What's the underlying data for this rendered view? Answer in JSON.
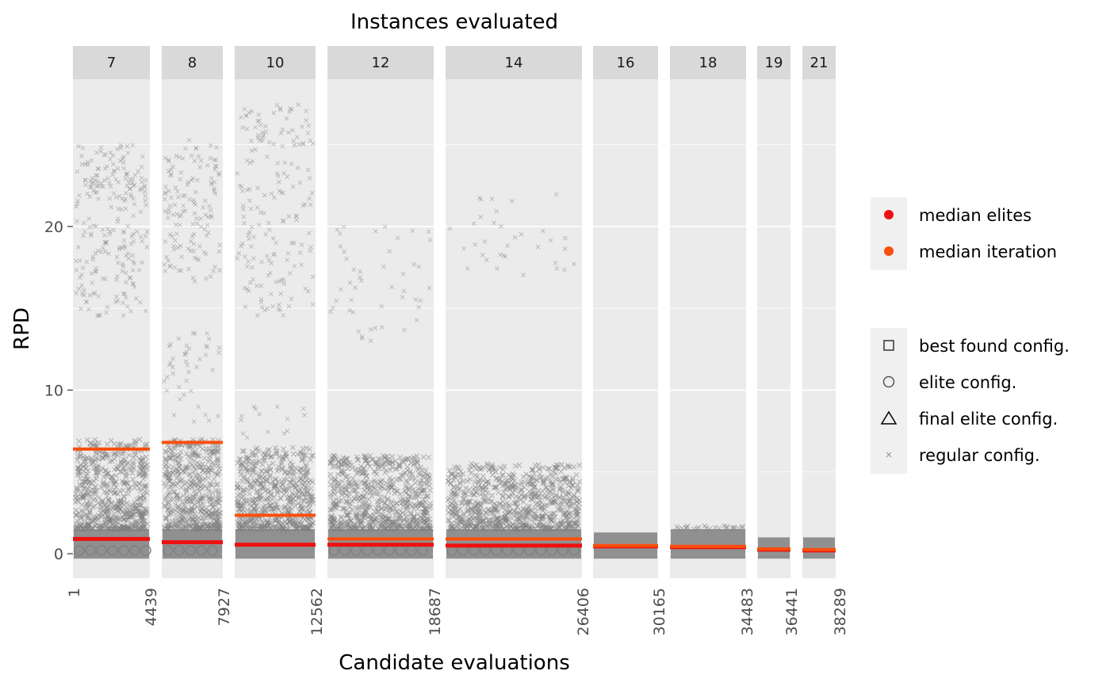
{
  "chart_data": {
    "type": "scatter",
    "title": "Instances evaluated",
    "xlabel": "Candidate evaluations",
    "ylabel": "RPD",
    "ylim": [
      -1.5,
      29
    ],
    "y_ticks": [
      0,
      10,
      20
    ],
    "grid": true,
    "legend_position": "right",
    "colors": {
      "panel_bg": "#ebebeb",
      "strip_bg": "#d9d9d9",
      "grid": "#ffffff",
      "points": "#808080",
      "median_elites": "#ee1111",
      "median_iteration": "#fb4f0d"
    },
    "legend_groups": [
      [
        {
          "label": "median elites",
          "shape": "dot",
          "color": "#ee1111"
        },
        {
          "label": "median iteration",
          "shape": "dot",
          "color": "#fb4f0d"
        }
      ],
      [
        {
          "label": "best found config.",
          "shape": "square"
        },
        {
          "label": "elite config.",
          "shape": "circle"
        },
        {
          "label": "final elite config.",
          "shape": "triangle"
        },
        {
          "label": "regular config.",
          "shape": "cross"
        }
      ]
    ],
    "panels": [
      {
        "instances": "7",
        "x_start": "1",
        "x_end": "4439",
        "median_elites": 0.9,
        "median_iteration": 6.4,
        "cross_bands": [
          [
            14.5,
            25,
            0.6
          ],
          [
            22,
            23,
            1
          ]
        ],
        "dense_band": [
          0,
          7
        ],
        "elite_circles": true
      },
      {
        "instances": "8",
        "x_start": "4439",
        "x_end": "7927",
        "median_elites": 0.7,
        "median_iteration": 6.8,
        "cross_bands": [
          [
            16.5,
            25.3,
            0.6
          ],
          [
            8,
            13.5,
            0.3
          ]
        ],
        "dense_band": [
          0,
          7
        ],
        "elite_circles": true
      },
      {
        "instances": "10",
        "x_start": "7927",
        "x_end": "12562",
        "median_elites": 0.55,
        "median_iteration": 2.35,
        "cross_bands": [
          [
            14.5,
            27.5,
            0.4
          ],
          [
            7,
            9,
            0.2
          ]
        ],
        "dense_band": [
          0,
          6.5
        ],
        "elite_circles": false
      },
      {
        "instances": "12",
        "x_start": "12562",
        "x_end": "18687",
        "median_elites": 0.55,
        "median_iteration": 0.9,
        "cross_bands": [
          [
            13,
            20,
            0.15
          ]
        ],
        "dense_band": [
          0,
          6
        ],
        "elite_circles": true
      },
      {
        "instances": "14",
        "x_start": "18687",
        "x_end": "26406",
        "median_elites": 0.5,
        "median_iteration": 0.9,
        "cross_bands": [
          [
            17,
            22,
            0.12
          ]
        ],
        "dense_band": [
          0,
          5.5
        ],
        "elite_circles": true
      },
      {
        "instances": "16",
        "x_start": "26406",
        "x_end": "30165",
        "median_elites": 0.45,
        "median_iteration": 0.5,
        "cross_bands": [],
        "dense_band": [
          0,
          1.3
        ],
        "elite_circles": false
      },
      {
        "instances": "18",
        "x_start": "30165",
        "x_end": "34483",
        "median_elites": 0.4,
        "median_iteration": 0.45,
        "cross_bands": [],
        "dense_band": [
          0,
          1.7
        ],
        "elite_circles": false
      },
      {
        "instances": "19",
        "x_start": "34483",
        "x_end": "36441",
        "median_elites": 0.25,
        "median_iteration": 0.3,
        "cross_bands": [],
        "dense_band": [
          0,
          1.0
        ],
        "elite_circles": false
      },
      {
        "instances": "21",
        "x_start": "36441",
        "x_end": "38289",
        "median_elites": 0.2,
        "median_iteration": 0.25,
        "cross_bands": [],
        "dense_band": [
          0,
          1.0
        ],
        "elite_circles": false
      }
    ],
    "last_x_label": "38289"
  }
}
